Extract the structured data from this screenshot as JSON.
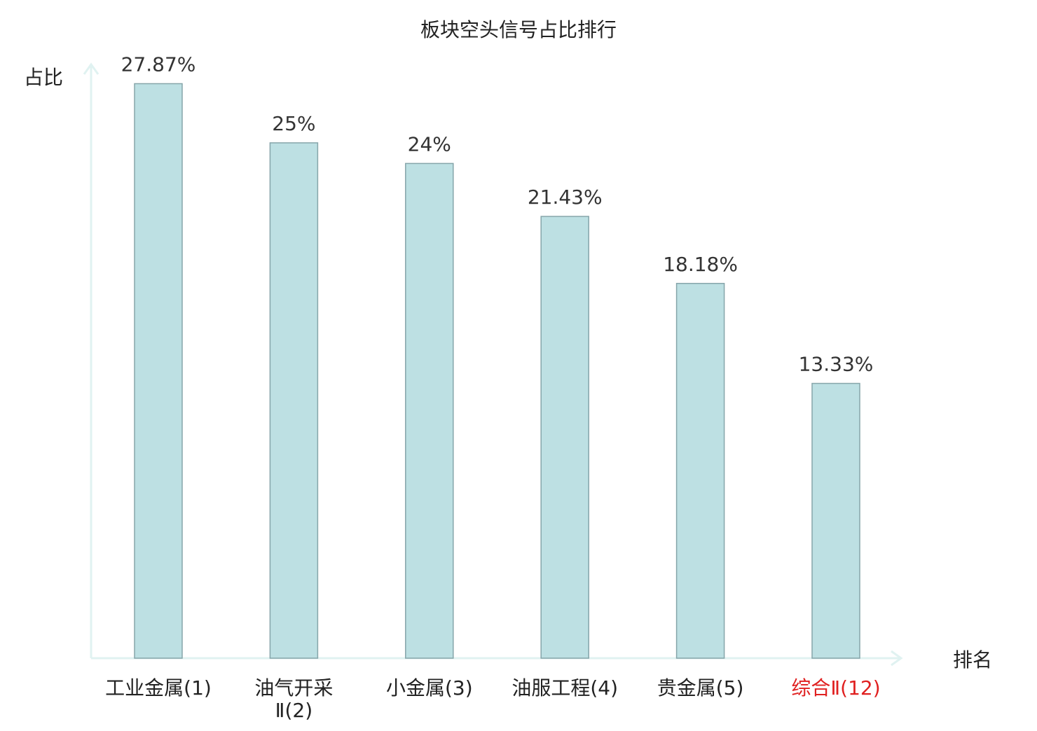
{
  "chart_data": {
    "type": "bar",
    "title": "板块空头信号占比排行",
    "xlabel": "排名",
    "ylabel": "占比",
    "categories": [
      [
        "工业金属(1)"
      ],
      [
        "油气开采",
        "Ⅱ(2)"
      ],
      [
        "小金属(3)"
      ],
      [
        "油服工程(4)"
      ],
      [
        "贵金属(5)"
      ],
      [
        "综合Ⅱ(12)"
      ]
    ],
    "values": [
      27.87,
      25,
      24,
      21.43,
      18.18,
      13.33
    ],
    "value_labels": [
      "27.87%",
      "25%",
      "24%",
      "21.43%",
      "18.18%",
      "13.33%"
    ],
    "highlight_index": 5,
    "ylim": [
      0,
      28.6
    ],
    "grid": false,
    "legend": "none",
    "colors": {
      "bar_fill": "#bde0e3",
      "bar_stroke": "#86a5aa",
      "axis": "#e0f2f1",
      "text": "#222222",
      "value_label": "#333333",
      "highlight": "#e02020"
    }
  }
}
